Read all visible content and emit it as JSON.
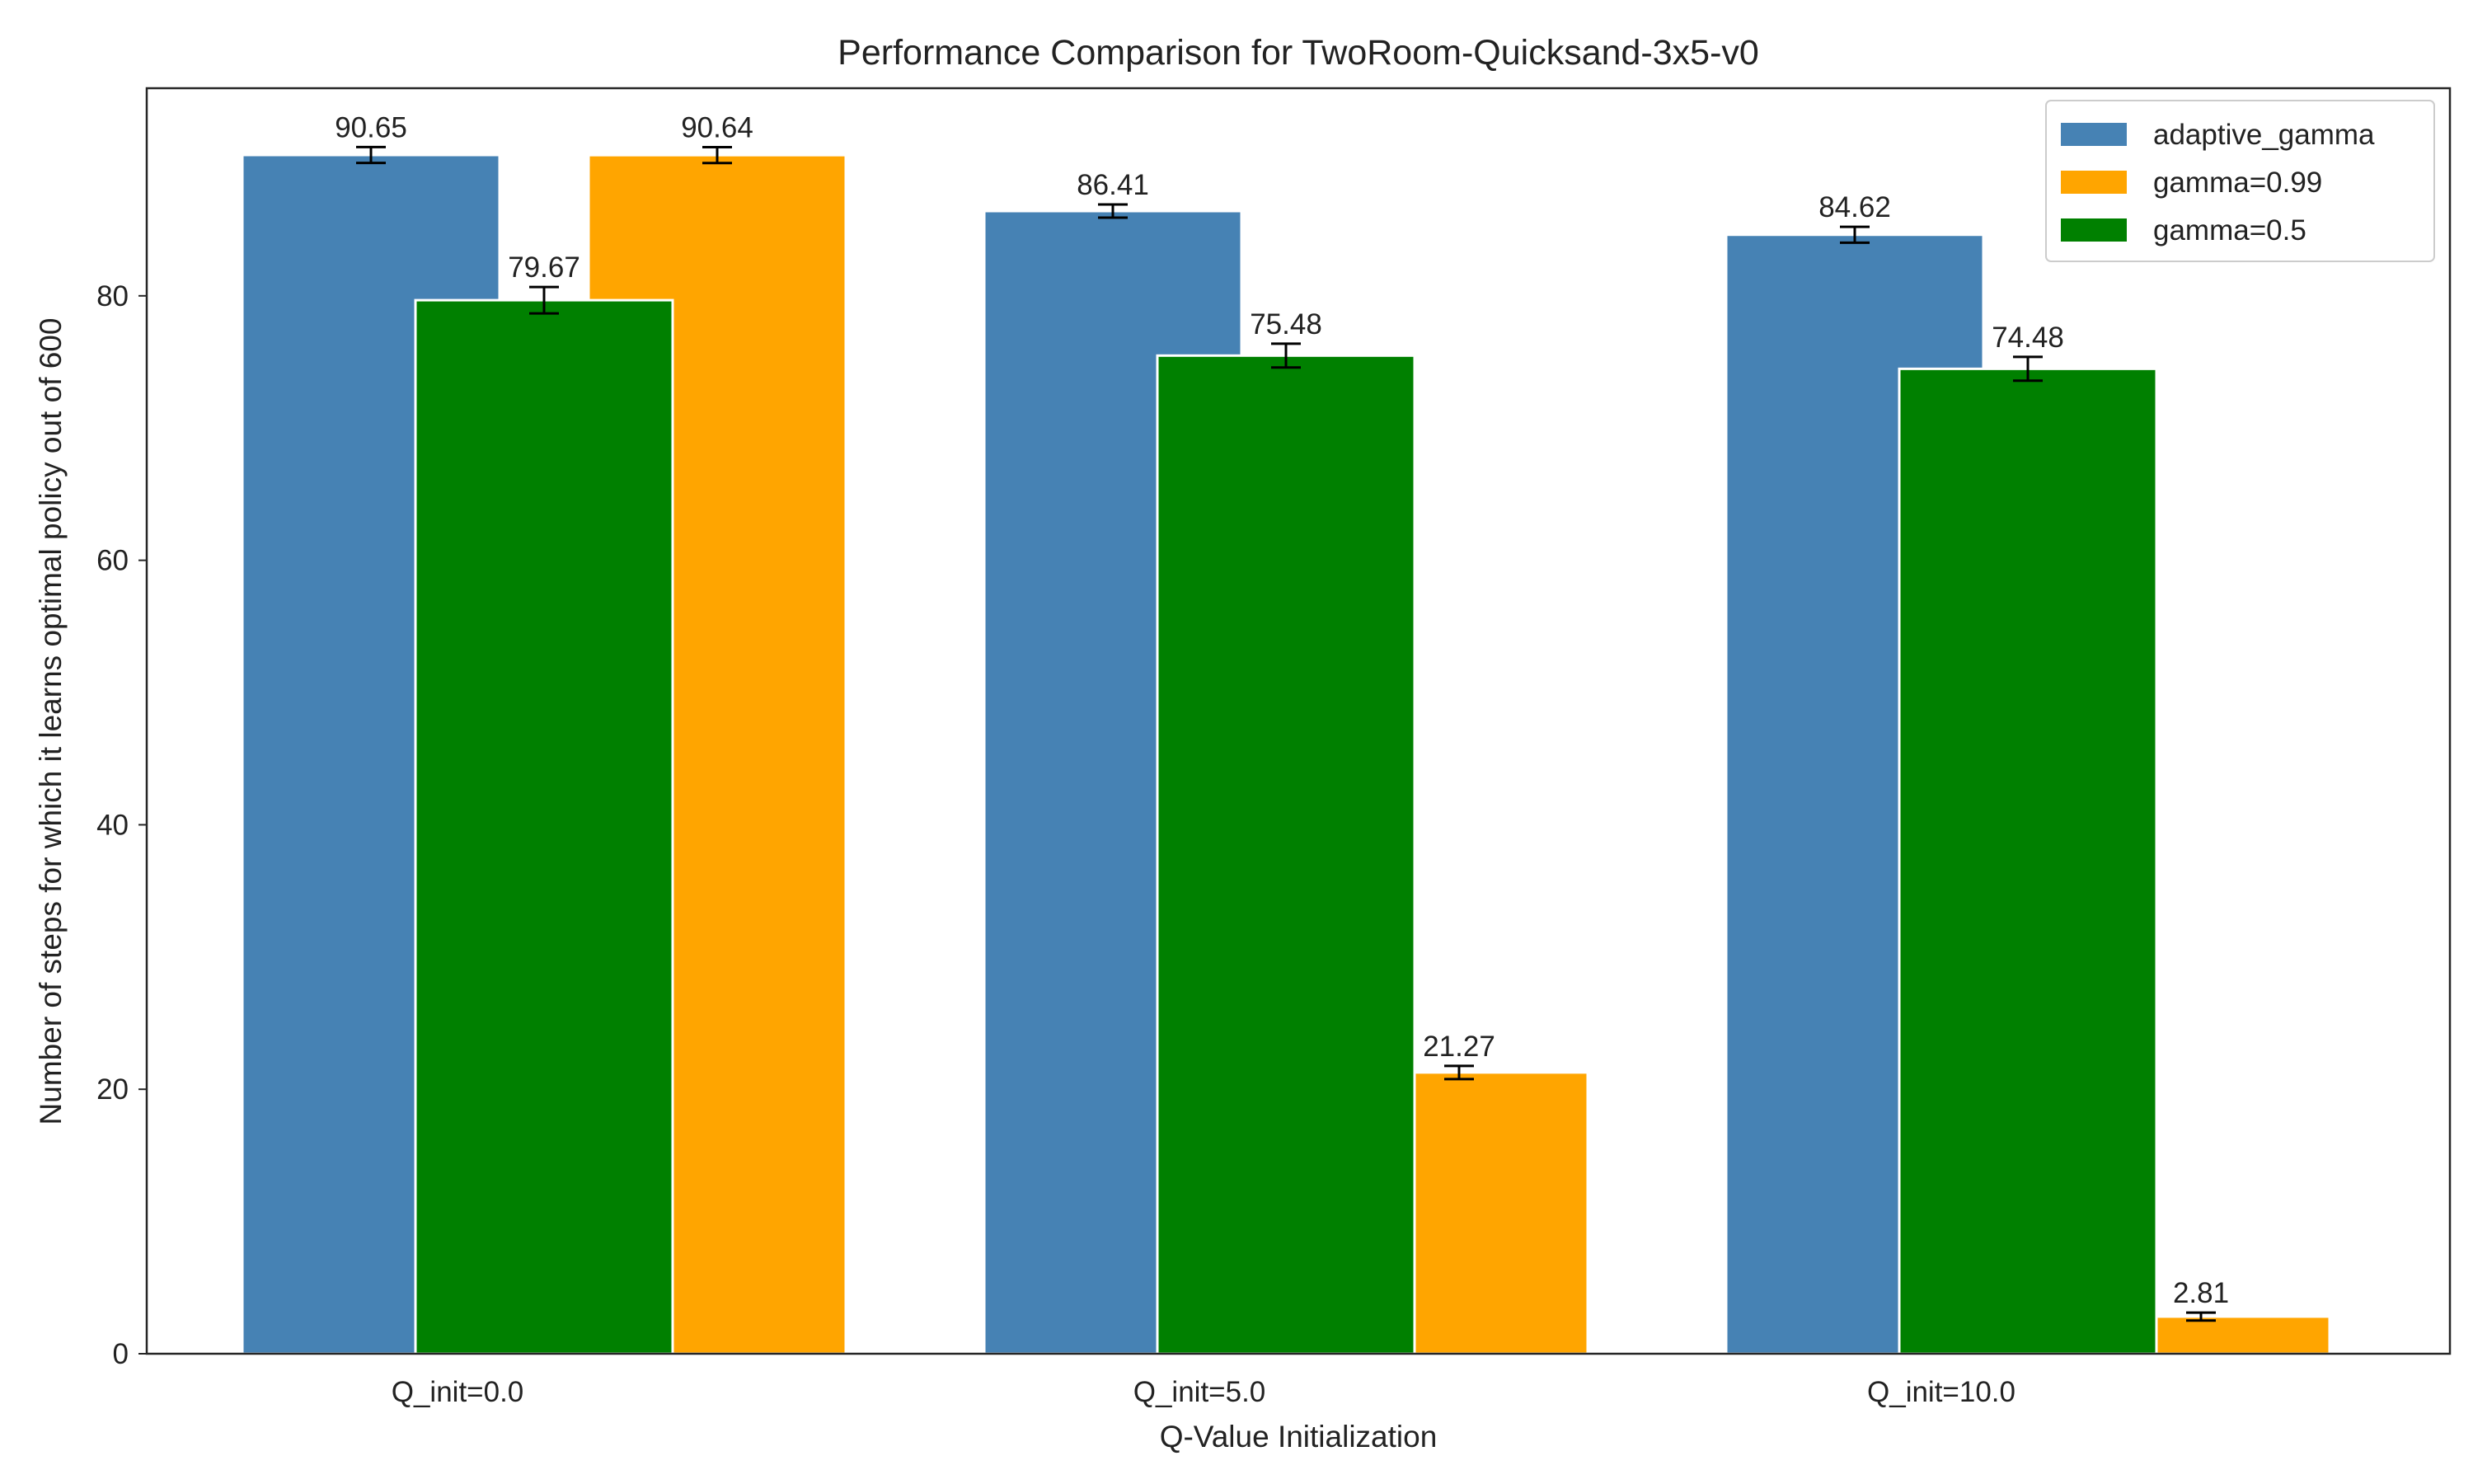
{
  "chart_data": {
    "type": "bar",
    "title": "Performance Comparison for TwoRoom-Quicksand-3x5-v0",
    "xlabel": "Q-Value Initialization",
    "ylabel": "Number of steps for which it learns optimal policy out of 600",
    "categories": [
      "Q_init=0.0",
      "Q_init=5.0",
      "Q_init=10.0"
    ],
    "ylim": [
      0,
      95.7
    ],
    "yticks": [
      0,
      20,
      40,
      60,
      80
    ],
    "series": [
      {
        "name": "adaptive_gamma",
        "color": "#4682b4",
        "values": [
          90.65,
          86.41,
          84.62
        ],
        "labels": [
          "90.65",
          "86.41",
          "84.62"
        ],
        "errors": [
          0.6,
          0.5,
          0.6
        ]
      },
      {
        "name": "gamma=0.99",
        "color": "#ffa500",
        "values": [
          90.64,
          21.27,
          2.81
        ],
        "labels": [
          "90.64",
          "21.27",
          "2.81"
        ],
        "errors": [
          0.6,
          0.5,
          0.3
        ]
      },
      {
        "name": "gamma=0.5",
        "color": "#008000",
        "values": [
          79.67,
          75.48,
          74.48
        ],
        "labels": [
          "79.67",
          "75.48",
          "74.48"
        ],
        "errors": [
          1.0,
          0.9,
          0.9
        ]
      }
    ],
    "legend_position": "top-right",
    "grid": false
  }
}
